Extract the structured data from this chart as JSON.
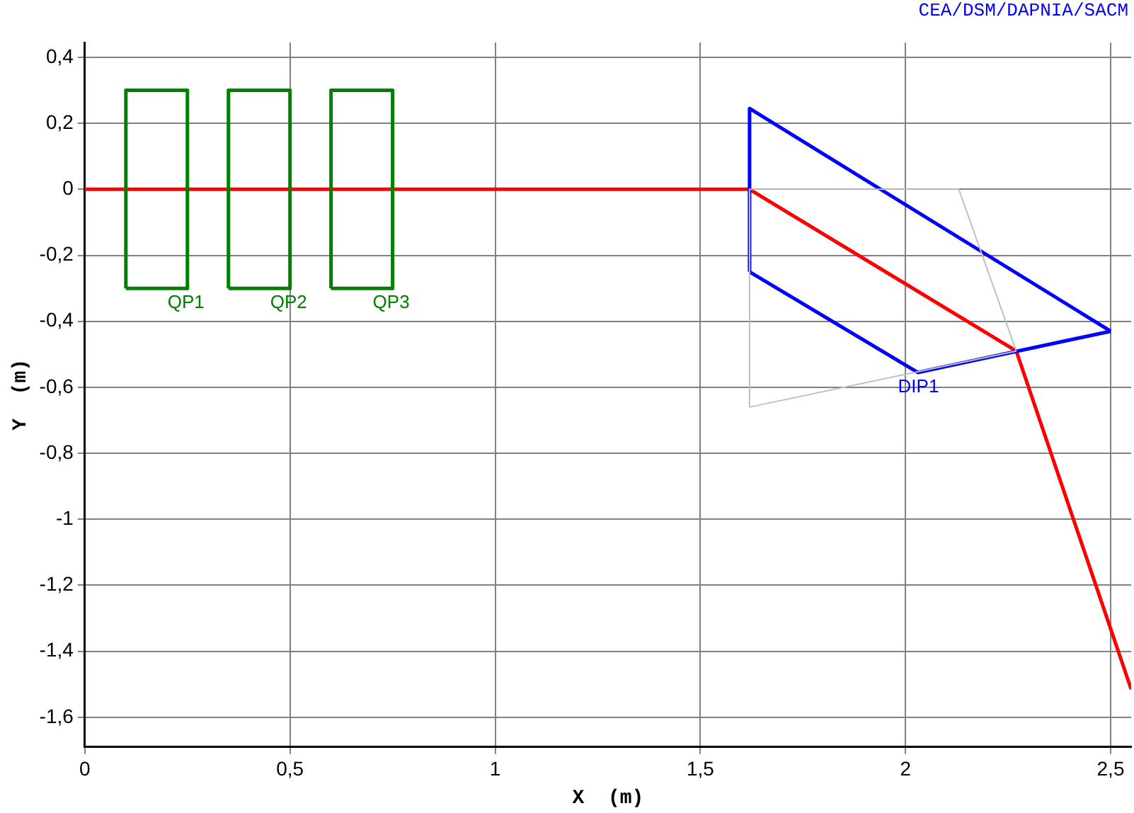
{
  "chart_data": {
    "type": "line",
    "title": "CEA/DSM/DAPNIA/SACM",
    "xlabel": "X  (m)",
    "ylabel": "Y  (m)",
    "xlim": [
      0,
      2.55
    ],
    "ylim": [
      -1.69,
      0.445
    ],
    "xticks": [
      0,
      {
        "value": 0.5,
        "label": "0,5"
      },
      1,
      {
        "value": 1.5,
        "label": "1,5"
      },
      2,
      {
        "value": 2.5,
        "label": "2,5"
      }
    ],
    "yticks": [
      {
        "value": 0.4,
        "label": "0,4"
      },
      {
        "value": 0.2,
        "label": "0,2"
      },
      0,
      {
        "value": -0.2,
        "label": "-0,2"
      },
      {
        "value": -0.4,
        "label": "-0,4"
      },
      {
        "value": -0.6,
        "label": "-0,6"
      },
      {
        "value": -0.8,
        "label": "-0,8"
      },
      -1,
      {
        "value": -1.2,
        "label": "-1,2"
      },
      {
        "value": -1.4,
        "label": "-1,4"
      },
      {
        "value": -1.6,
        "label": "-1,6"
      }
    ],
    "grid": true,
    "legend": false,
    "marker": "none",
    "line_style": "solid",
    "series": [
      {
        "color": "#c0c0c0",
        "x": [
          1.62,
          1.62,
          2.13,
          2.27
        ],
        "values": [
          -0.66,
          0,
          0,
          -0.49
        ]
      },
      {
        "color": "#c0c0c0",
        "x": [
          1.62,
          2.27
        ],
        "values": [
          -0.66,
          -0.49
        ]
      },
      {
        "name": "QP1",
        "color": "#008000",
        "x": [
          0.1,
          0.1,
          0.25,
          0.25
        ],
        "values": [
          -0.3,
          0.3,
          0.3,
          -0.3
        ]
      },
      {
        "color": "#008000",
        "x": [
          0.1,
          0.25
        ],
        "values": [
          -0.3,
          -0.3
        ]
      },
      {
        "name": "QP2",
        "color": "#008000",
        "x": [
          0.35,
          0.35,
          0.5,
          0.5
        ],
        "values": [
          -0.3,
          0.3,
          0.3,
          -0.3
        ]
      },
      {
        "color": "#008000",
        "x": [
          0.35,
          0.5
        ],
        "values": [
          -0.3,
          -0.3
        ]
      },
      {
        "name": "QP3",
        "color": "#008000",
        "x": [
          0.6,
          0.6,
          0.75,
          0.75
        ],
        "values": [
          -0.3,
          0.3,
          0.3,
          -0.3
        ]
      },
      {
        "color": "#008000",
        "x": [
          0.6,
          0.75
        ],
        "values": [
          -0.3,
          -0.3
        ]
      },
      {
        "color": "#0000ff",
        "x": [
          1.62,
          1.62,
          2.5
        ],
        "values": [
          -0.25,
          0.245,
          -0.43
        ]
      },
      {
        "name": "DIP1",
        "color": "#0000ff",
        "x": [
          1.62,
          2.03,
          2.5
        ],
        "values": [
          -0.25,
          -0.555,
          -0.43
        ]
      },
      {
        "color": "#ff0000",
        "x": [
          0,
          1.62,
          2.27,
          2.55
        ],
        "values": [
          0,
          0,
          -0.49,
          -1.515
        ]
      }
    ]
  }
}
